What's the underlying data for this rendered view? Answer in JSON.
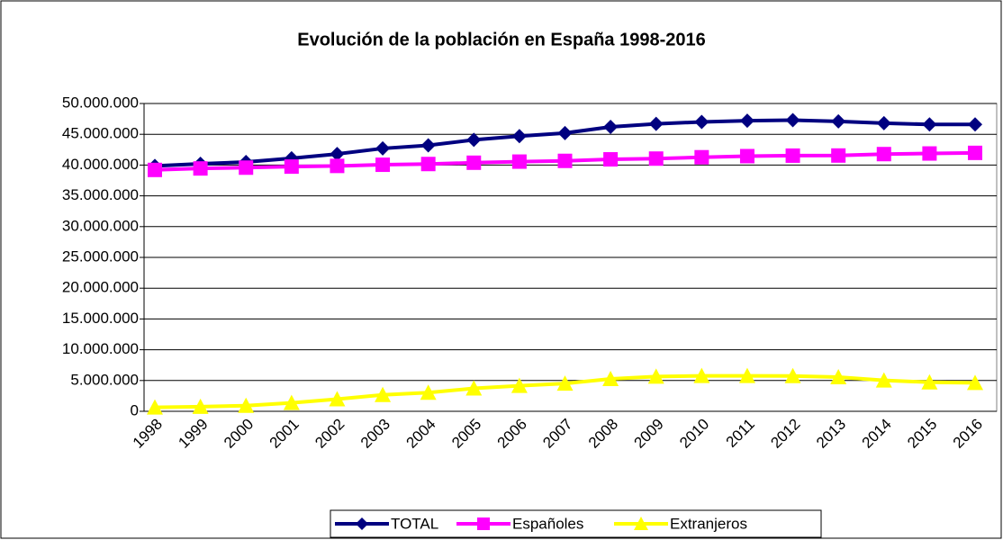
{
  "chart_data": {
    "type": "line",
    "title": "Evolución de la población en España 1998-2016",
    "categories": [
      "1998",
      "1999",
      "2000",
      "2001",
      "2002",
      "2003",
      "2004",
      "2005",
      "2006",
      "2007",
      "2008",
      "2009",
      "2010",
      "2011",
      "2012",
      "2013",
      "2014",
      "2015",
      "2016"
    ],
    "series": [
      {
        "name": "TOTAL",
        "color": "#000080",
        "marker": "diamond",
        "values": [
          39850000,
          40200000,
          40500000,
          41100000,
          41800000,
          42700000,
          43200000,
          44100000,
          44700000,
          45200000,
          46200000,
          46700000,
          47000000,
          47200000,
          47300000,
          47100000,
          46800000,
          46600000,
          46600000
        ]
      },
      {
        "name": "Españoles",
        "color": "#ff00ff",
        "marker": "square",
        "values": [
          39210000,
          39450000,
          39580000,
          39750000,
          39860000,
          40050000,
          40170000,
          40380000,
          40560000,
          40680000,
          40930000,
          41050000,
          41270000,
          41450000,
          41530000,
          41550000,
          41780000,
          41880000,
          41980000
        ]
      },
      {
        "name": "Extranjeros",
        "color": "#ffff00",
        "marker": "triangle",
        "values": [
          640000,
          750000,
          920000,
          1370000,
          1980000,
          2660000,
          3030000,
          3730000,
          4140000,
          4520000,
          5270000,
          5650000,
          5750000,
          5750000,
          5740000,
          5550000,
          5020000,
          4720000,
          4620000
        ]
      }
    ],
    "ylim": [
      0,
      50000000
    ],
    "yticks": [
      0,
      {
        "value": 5000000,
        "label": "5.000.000"
      },
      {
        "value": 10000000,
        "label": "10.000.000"
      },
      {
        "value": 15000000,
        "label": "15.000.000"
      },
      {
        "value": 20000000,
        "label": "20.000.000"
      },
      {
        "value": 25000000,
        "label": "25.000.000"
      },
      {
        "value": 30000000,
        "label": "30.000.000"
      },
      {
        "value": 35000000,
        "label": "35.000.000"
      },
      {
        "value": 40000000,
        "label": "40.000.000"
      },
      {
        "value": 45000000,
        "label": "45.000.000"
      },
      {
        "value": 50000000,
        "label": "50.000.000"
      }
    ],
    "grid": true,
    "legend": "bottom"
  }
}
